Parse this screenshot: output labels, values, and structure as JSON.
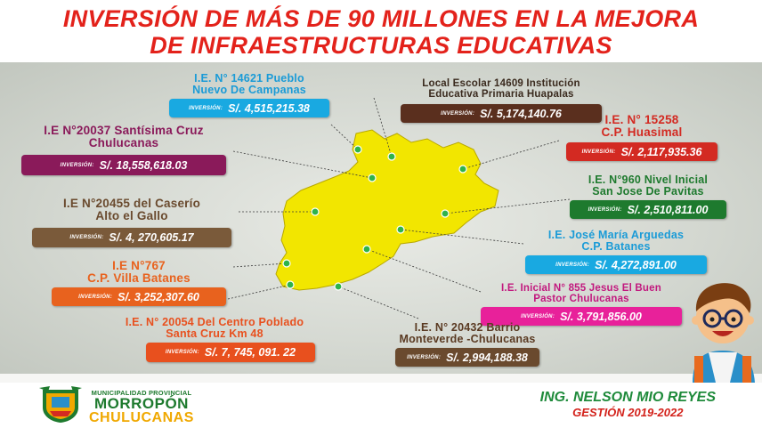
{
  "title": {
    "line1": "INVERSIÓN DE MÁS DE 90 MILLONES EN LA MEJORA",
    "line2": "DE INFRAESTRUCTURAS EDUCATIVAS"
  },
  "investment_label": "INVERSIÓN:",
  "projects": [
    {
      "name1": "I.E. N° 14621 Pueblo",
      "name2": "Nuevo De Campanas",
      "amount": "S/.  4,515,215.38",
      "color": "#19a9e1",
      "name_color": "#1a9bd7"
    },
    {
      "name1": "Local Escolar 14609  Institución",
      "name2": "Educativa Primaria Huapalas",
      "amount": "S/.  5,174,140.76",
      "color": "#5a2f1e",
      "name_color": "#3a2a1e"
    },
    {
      "name1": "I.E N°20037 Santísima Cruz",
      "name2": "Chulucanas",
      "amount": "S/.  18,558,618.03",
      "color": "#8a1a5a",
      "name_color": "#8a1a5a"
    },
    {
      "name1": "I.E. N° 15258",
      "name2": "C.P. Huasimal",
      "amount": "S/. 2,117,935.36",
      "color": "#d32a22",
      "name_color": "#d32a22"
    },
    {
      "name1": "I.E N°20455 del Caserío",
      "name2": "Alto el Gallo",
      "amount": "S/.  4, 270,605.17",
      "color": "#7a5a3a",
      "name_color": "#6a4a2e"
    },
    {
      "name1": "I.E. N°960  Nivel Inicial",
      "name2": "San Jose De Pavitas",
      "amount": "S/. 2,510,811.00",
      "color": "#1e7a2e",
      "name_color": "#1e7a2e"
    },
    {
      "name1": "I.E. José María Arguedas",
      "name2": "C.P. Batanes",
      "amount": "S/.  4,272,891.00",
      "color": "#19a9e1",
      "name_color": "#1a9bd7"
    },
    {
      "name1": "I.E N°767",
      "name2": "C.P. Villa Batanes",
      "amount": "S/.  3,252,307.60",
      "color": "#e8621e",
      "name_color": "#e8621e"
    },
    {
      "name1": "I.E. Inicial N° 855 Jesus El Buen",
      "name2": "Pastor  Chulucanas",
      "amount": "S/.  3,791,856.00",
      "color": "#e8219a",
      "name_color": "#c2187e"
    },
    {
      "name1": "I.E. N° 20054  Del Centro Poblado",
      "name2": "Santa Cruz Km 48",
      "amount": "S/.  7, 745, 091. 22",
      "color": "#e8501e",
      "name_color": "#e8501e"
    },
    {
      "name1": "I.E. N° 20432 Barrio",
      "name2": "Monteverde -Chulucanas",
      "amount": "S/.  2,994,188.38",
      "color": "#6a4a2e",
      "name_color": "#5a3a22"
    }
  ],
  "footer": {
    "muni_line1": "MUNICIPALIDAD PROVINCIAL",
    "muni_line2": "MORROPÓN",
    "muni_line3": "CHULUCANAS",
    "mayor": "ING. NELSON MIO REYES",
    "term": "GESTIÓN 2019-2022"
  },
  "colors": {
    "title": "#e3221b",
    "map_fill": "#f2e600",
    "map_points": "#2fb34a"
  }
}
